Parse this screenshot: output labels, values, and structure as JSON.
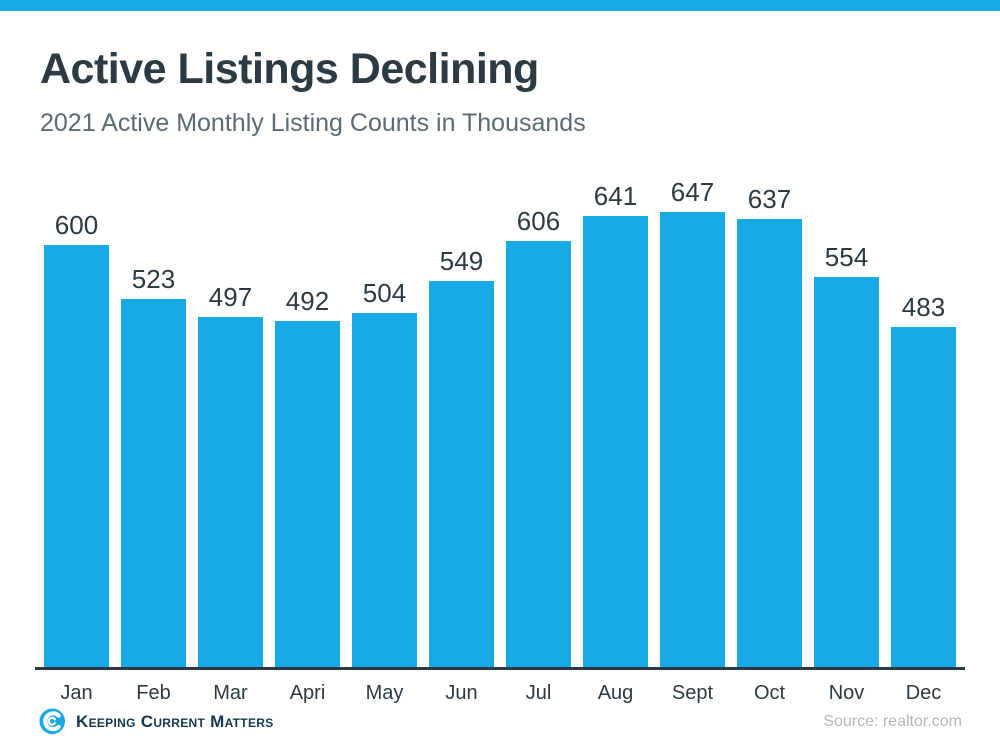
{
  "brand": {
    "accent_color": "#16A9E4",
    "dark_text_color": "#2C3A44",
    "subtitle_color": "#5B6B74",
    "logo_navy_color": "#14384F",
    "source_color": "#B1B8BE"
  },
  "header": {
    "title": "Active Listings Declining",
    "subtitle": "2021 Active Monthly Listing Counts in Thousands"
  },
  "chart_data": {
    "type": "bar",
    "categories": [
      "Jan",
      "Feb",
      "Mar",
      "Apri",
      "May",
      "Jun",
      "Jul",
      "Aug",
      "Sept",
      "Oct",
      "Nov",
      "Dec"
    ],
    "values": [
      600,
      523,
      497,
      492,
      504,
      549,
      606,
      641,
      647,
      637,
      554,
      483
    ],
    "title": "Active Listings Declining",
    "subtitle": "2021 Active Monthly Listing Counts in Thousands",
    "xlabel": "",
    "ylabel": "",
    "ylim": [
      0,
      660
    ],
    "bar_color": "#16A9E4",
    "value_labels_shown": true,
    "grid": false,
    "legend": false,
    "axis_line_color": "#2B3A42"
  },
  "footer": {
    "logo_text": "Keeping Current Matters",
    "source_label": "Source: realtor.com"
  }
}
